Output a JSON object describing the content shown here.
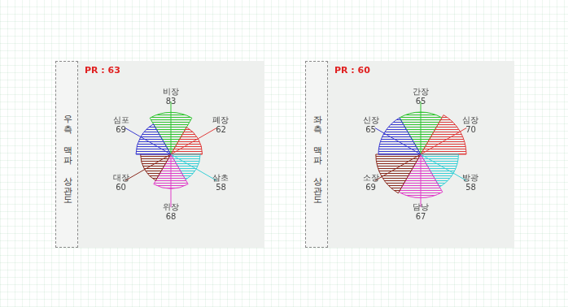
{
  "chart_data": [
    {
      "type": "polarArea",
      "title": "우측 맥파 상관도",
      "subtitle": "PR : 63",
      "categories": [
        "비장",
        "폐장",
        "삼초",
        "위장",
        "대장",
        "심포"
      ],
      "values": [
        83,
        62,
        58,
        68,
        60,
        69
      ],
      "colors": [
        "#2fc42f",
        "#e03a3a",
        "#36cfd6",
        "#e03cc8",
        "#8a2a1e",
        "#3a3ad0"
      ],
      "data_labels": true,
      "tick_labels": false
    },
    {
      "type": "polarArea",
      "title": "좌측 맥파 상관도",
      "subtitle": "PR : 60",
      "categories": [
        "간장",
        "심장",
        "방광",
        "담낭",
        "소장",
        "신장"
      ],
      "values": [
        65,
        70,
        58,
        67,
        69,
        65
      ],
      "colors": [
        "#2fc42f",
        "#e03a3a",
        "#36cfd6",
        "#e03cc8",
        "#8a2a1e",
        "#3a3ad0"
      ],
      "data_labels": true,
      "tick_labels": false
    }
  ]
}
